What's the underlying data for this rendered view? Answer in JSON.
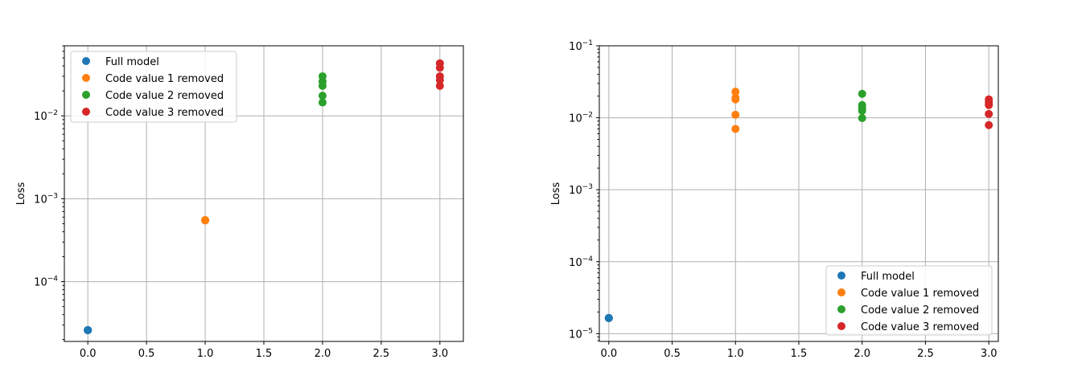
{
  "chart_data": [
    {
      "type": "scatter",
      "ylabel": "Loss",
      "xlabel": "",
      "title": "",
      "y_scale": "log",
      "xlim": [
        -0.2,
        3.2
      ],
      "ylim": [
        1.9e-05,
        0.07
      ],
      "x_ticks": [
        {
          "value": 0.0,
          "label": "0.0"
        },
        {
          "value": 0.5,
          "label": "0.5"
        },
        {
          "value": 1.0,
          "label": "1.0"
        },
        {
          "value": 1.5,
          "label": "1.5"
        },
        {
          "value": 2.0,
          "label": "2.0"
        },
        {
          "value": 2.5,
          "label": "2.5"
        },
        {
          "value": 3.0,
          "label": "3.0"
        }
      ],
      "y_ticks": [
        {
          "value": 0.0001,
          "base": "10",
          "exp": "−4"
        },
        {
          "value": 0.001,
          "base": "10",
          "exp": "−3"
        },
        {
          "value": 0.01,
          "base": "10",
          "exp": "−2"
        }
      ],
      "grid": true,
      "legend_position": "top-left",
      "series": [
        {
          "name": "Full model",
          "color": "#1f77b4",
          "x": [
            0,
            0,
            0,
            0,
            0
          ],
          "y": [
            2.6e-05,
            2.6e-05,
            2.6e-05,
            2.6e-05,
            2.6e-05
          ]
        },
        {
          "name": "Code value 1 removed",
          "color": "#ff7f0e",
          "x": [
            1,
            1,
            1,
            1,
            1
          ],
          "y": [
            0.00055,
            0.00055,
            0.00055,
            0.00055,
            0.00055
          ]
        },
        {
          "name": "Code value 2 removed",
          "color": "#2ca02c",
          "x": [
            2,
            2,
            2,
            2,
            2
          ],
          "y": [
            0.03,
            0.026,
            0.023,
            0.0175,
            0.0145
          ]
        },
        {
          "name": "Code value 3 removed",
          "color": "#d62728",
          "x": [
            3,
            3,
            3,
            3,
            3
          ],
          "y": [
            0.043,
            0.038,
            0.03,
            0.027,
            0.023
          ]
        }
      ]
    },
    {
      "type": "scatter",
      "ylabel": "Loss",
      "xlabel": "",
      "title": "",
      "y_scale": "log",
      "xlim": [
        -0.075,
        3.075
      ],
      "ylim": [
        7.8e-06,
        0.1
      ],
      "x_ticks": [
        {
          "value": 0.0,
          "label": "0.0"
        },
        {
          "value": 0.5,
          "label": "0.5"
        },
        {
          "value": 1.0,
          "label": "1.0"
        },
        {
          "value": 1.5,
          "label": "1.5"
        },
        {
          "value": 2.0,
          "label": "2.0"
        },
        {
          "value": 2.5,
          "label": "2.5"
        },
        {
          "value": 3.0,
          "label": "3.0"
        }
      ],
      "y_ticks": [
        {
          "value": 1e-05,
          "base": "10",
          "exp": "−5"
        },
        {
          "value": 0.0001,
          "base": "10",
          "exp": "−4"
        },
        {
          "value": 0.001,
          "base": "10",
          "exp": "−3"
        },
        {
          "value": 0.01,
          "base": "10",
          "exp": "−2"
        },
        {
          "value": 0.1,
          "base": "10",
          "exp": "−1"
        }
      ],
      "grid": true,
      "legend_position": "bottom-right",
      "series": [
        {
          "name": "Full model",
          "color": "#1f77b4",
          "x": [
            0,
            0,
            0,
            0,
            0
          ],
          "y": [
            1.65e-05,
            1.65e-05,
            1.65e-05,
            1.65e-05,
            1.65e-05
          ]
        },
        {
          "name": "Code value 1 removed",
          "color": "#ff7f0e",
          "x": [
            1,
            1,
            1,
            1,
            1
          ],
          "y": [
            0.023,
            0.019,
            0.018,
            0.011,
            0.007
          ]
        },
        {
          "name": "Code value 2 removed",
          "color": "#2ca02c",
          "x": [
            2,
            2,
            2,
            2,
            2
          ],
          "y": [
            0.0215,
            0.015,
            0.0135,
            0.0125,
            0.0099
          ]
        },
        {
          "name": "Code value 3 removed",
          "color": "#d62728",
          "x": [
            3,
            3,
            3,
            3,
            3
          ],
          "y": [
            0.018,
            0.0165,
            0.015,
            0.0113,
            0.0079
          ]
        }
      ]
    }
  ]
}
